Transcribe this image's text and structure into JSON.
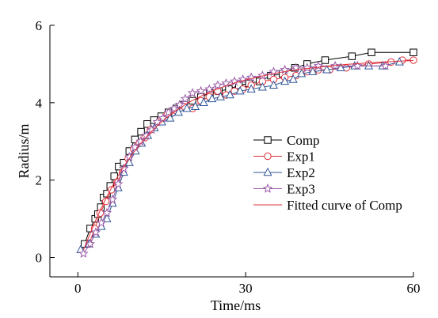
{
  "chart_data": {
    "type": "line",
    "title": "",
    "xlabel": "Time/ms",
    "ylabel": "Radius/m",
    "xlim": [
      -5,
      60
    ],
    "ylim": [
      -0.5,
      6
    ],
    "xticks": [
      0,
      30,
      60
    ],
    "yticks": [
      0,
      2,
      4,
      6
    ],
    "xtick_labels": [
      "0",
      "30",
      "60"
    ],
    "ytick_labels": [
      "0",
      "2",
      "4",
      "6"
    ],
    "grid": false,
    "legend_position": "right",
    "series": [
      {
        "name": "Comp",
        "color": "#000000",
        "marker": "square",
        "x": [
          1.2,
          2.2,
          3.1,
          3.6,
          4.1,
          4.6,
          5.2,
          5.8,
          6.5,
          7.3,
          8.2,
          9.2,
          10.2,
          11.3,
          12.4,
          13.6,
          14.9,
          16.2,
          17.6,
          19.0,
          20.5,
          22.0,
          23.6,
          25.2,
          27.0,
          28.8,
          30.6,
          32.5,
          34.5,
          36.6,
          38.8,
          41.0,
          44.2,
          49.0,
          52.5,
          60.0
        ],
        "y": [
          0.35,
          0.75,
          1.0,
          1.12,
          1.3,
          1.55,
          1.65,
          1.85,
          2.1,
          2.35,
          2.45,
          2.75,
          3.05,
          3.25,
          3.45,
          3.55,
          3.65,
          3.75,
          3.85,
          3.95,
          4.05,
          4.15,
          4.25,
          4.3,
          4.35,
          4.45,
          4.5,
          4.55,
          4.7,
          4.75,
          4.9,
          5.0,
          5.1,
          5.2,
          5.3,
          5.3
        ]
      },
      {
        "name": "Exp1",
        "color": "#e0303a",
        "marker": "circle",
        "x": [
          2.0,
          3.0,
          4.0,
          5.0,
          6.0,
          7.0,
          8.0,
          9.0,
          10.0,
          11.0,
          12.0,
          13.0,
          14.5,
          16.0,
          17.5,
          19.0,
          20.5,
          22.0,
          23.5,
          25.0,
          26.5,
          28.0,
          29.5,
          31.0,
          33.0,
          35.0,
          37.0,
          39.0,
          41.0,
          43.0,
          45.0,
          48.0,
          52.0,
          56.0,
          58.0,
          60.0
        ],
        "y": [
          0.35,
          0.75,
          1.15,
          1.45,
          1.75,
          1.95,
          2.2,
          2.55,
          2.8,
          2.95,
          3.1,
          3.3,
          3.5,
          3.7,
          3.8,
          3.9,
          3.85,
          4.05,
          4.15,
          4.3,
          4.2,
          4.3,
          4.35,
          4.45,
          4.55,
          4.6,
          4.65,
          4.7,
          4.8,
          4.85,
          4.85,
          4.9,
          5.0,
          5.05,
          5.1,
          5.1
        ]
      },
      {
        "name": "Exp2",
        "color": "#2f5597",
        "marker": "triangle",
        "x": [
          0.5,
          2.0,
          3.2,
          4.2,
          5.2,
          6.2,
          7.2,
          8.2,
          9.2,
          10.3,
          11.4,
          12.5,
          13.7,
          15.0,
          16.5,
          18.0,
          19.5,
          21.0,
          22.5,
          24.0,
          25.5,
          27.2,
          29.0,
          31.0,
          33.0,
          35.0,
          37.0,
          38.5,
          40.0,
          42.0,
          44.5,
          47.0,
          49.5,
          52.0,
          54.5,
          57.5
        ],
        "y": [
          0.2,
          0.35,
          0.6,
          0.8,
          1.0,
          1.4,
          1.8,
          2.2,
          2.45,
          2.75,
          2.95,
          3.15,
          3.35,
          3.5,
          3.6,
          3.75,
          3.85,
          3.9,
          4.0,
          4.1,
          4.15,
          4.2,
          4.3,
          4.35,
          4.4,
          4.45,
          4.55,
          4.6,
          4.75,
          4.8,
          4.85,
          4.9,
          4.95,
          4.95,
          4.95,
          5.05
        ]
      },
      {
        "name": "Exp3",
        "color": "#9a5aa6",
        "marker": "star",
        "x": [
          1.0,
          2.2,
          3.2,
          4.2,
          5.2,
          6.2,
          7.2,
          8.2,
          9.2,
          10.2,
          11.2,
          12.2,
          13.2,
          14.2,
          15.2,
          16.2,
          17.2,
          18.2,
          19.2,
          20.5,
          22.0,
          23.5,
          25.0,
          26.5,
          28.0,
          29.5,
          31.0,
          33.0,
          35.0,
          37.0,
          39.0,
          41.0,
          43.0,
          46.0,
          50.0,
          55.0
        ],
        "y": [
          0.1,
          0.35,
          0.65,
          0.9,
          1.15,
          1.5,
          1.9,
          2.3,
          2.6,
          2.85,
          3.0,
          3.15,
          3.3,
          3.5,
          3.6,
          3.75,
          3.85,
          3.95,
          4.1,
          4.25,
          4.3,
          4.35,
          4.45,
          4.5,
          4.55,
          4.6,
          4.65,
          4.7,
          4.8,
          4.85,
          4.9,
          4.9,
          4.95,
          4.95,
          4.95,
          4.95
        ]
      },
      {
        "name": "Fitted curve of Comp",
        "color": "#e0303a",
        "marker": "none",
        "x": [
          1,
          2,
          3,
          4,
          5,
          6,
          7,
          8,
          9,
          10,
          12,
          14,
          16,
          18,
          20,
          22,
          24,
          26,
          28,
          30,
          33,
          36,
          39,
          42,
          45,
          48,
          51,
          54,
          57,
          60
        ],
        "y": [
          0.2,
          0.55,
          0.9,
          1.22,
          1.52,
          1.8,
          2.06,
          2.3,
          2.52,
          2.72,
          3.08,
          3.38,
          3.63,
          3.84,
          4.02,
          4.17,
          4.3,
          4.41,
          4.51,
          4.59,
          4.69,
          4.78,
          4.85,
          4.9,
          4.95,
          4.99,
          5.02,
          5.05,
          5.07,
          5.09
        ]
      }
    ]
  }
}
